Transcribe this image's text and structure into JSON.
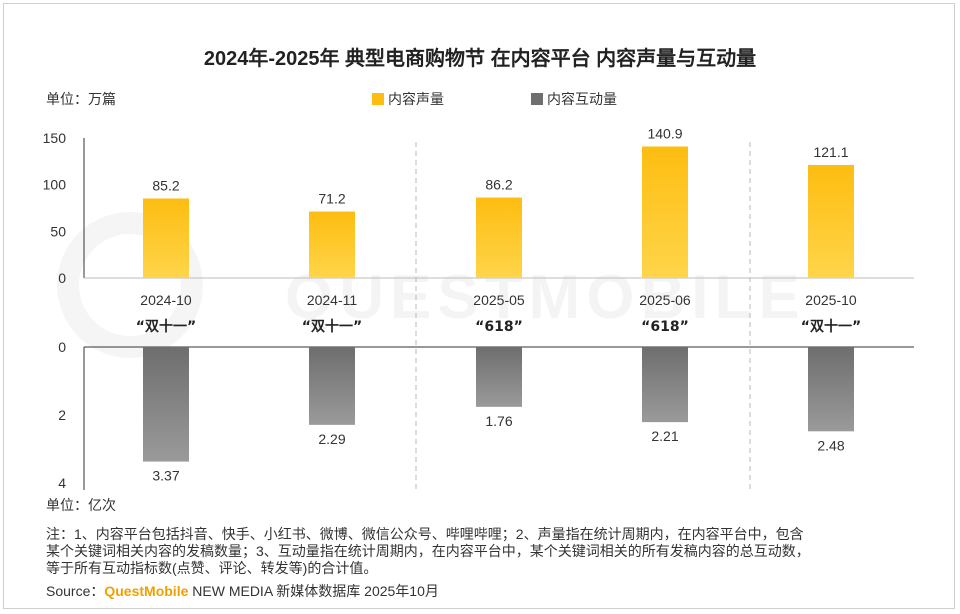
{
  "title": "2024年-2025年 典型电商购物节 在内容平台 内容声量与互动量",
  "unit_top": "单位：万篇",
  "unit_bottom": "单位：亿次",
  "watermark": "QUESTMOBILE",
  "notes": [
    "注：1、内容平台包括抖音、快手、小红书、微博、微信公众号、哔哩哔哩；2、声量指在统计周期内，在内容平台中，包含",
    "某个关键词相关内容的发稿数量；3、互动量指在统计周期内，在内容平台中，某个关键词相关的所有发稿内容的总互动数，",
    "等于所有互动指标数(点赞、评论、转发等)的合计值。"
  ],
  "source": {
    "prefix": "Source：",
    "brand": "QuestMobile",
    "suffix": " NEW MEDIA 新媒体数据库 2025年10月"
  },
  "colors": {
    "volume": "#FDBD11",
    "volume_light": "#FFD54A",
    "interaction": "#6E6E6E",
    "interaction_light": "#9A9A9A"
  },
  "chart_data": {
    "type": "bar",
    "categories": [
      "2024-10",
      "2024-11",
      "2025-05",
      "2025-06",
      "2025-10"
    ],
    "category_events": [
      "“双十一”",
      "“双十一”",
      "“618”",
      "“618”",
      "“双十一”"
    ],
    "series": [
      {
        "name": "内容声量",
        "unit": "万篇",
        "values": [
          85.2,
          71.2,
          86.2,
          140.9,
          121.1
        ],
        "value_labels": [
          "85.2",
          "71.2",
          "86.2",
          "140.9",
          "121.1"
        ]
      },
      {
        "name": "内容互动量",
        "unit": "亿次",
        "values": [
          3.37,
          2.29,
          1.76,
          2.21,
          2.48
        ],
        "value_labels": [
          "3.37",
          "2.29",
          "1.76",
          "2.21",
          "2.48"
        ]
      }
    ],
    "top_axis": {
      "ylim": [
        0,
        150
      ],
      "ticks": [
        "0",
        "50",
        "100",
        "150"
      ],
      "tick_values": [
        0,
        50,
        100,
        150
      ]
    },
    "bottom_axis": {
      "ylim": [
        0,
        4
      ],
      "ticks": [
        "0",
        "2",
        "4"
      ],
      "tick_values": [
        0,
        2,
        4
      ],
      "inverted": true
    },
    "legend_position": "top-center"
  }
}
